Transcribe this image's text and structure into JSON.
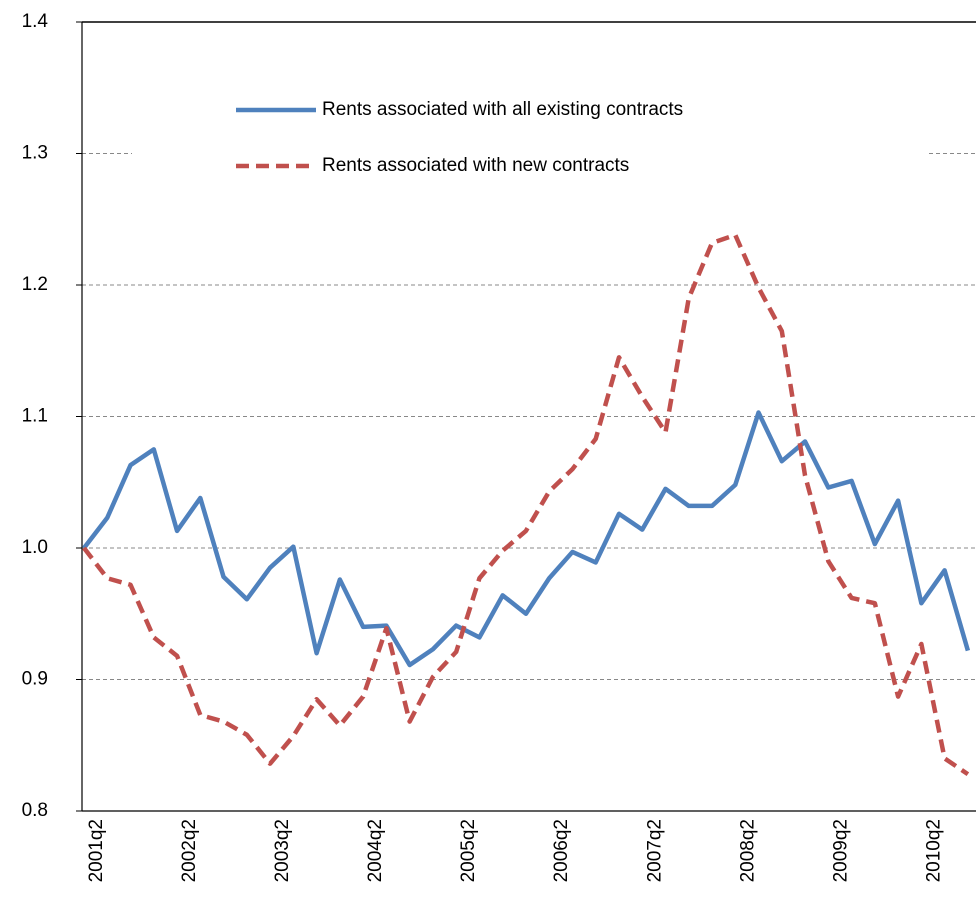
{
  "chart_data": {
    "type": "line",
    "categories": [
      "2001q2",
      null,
      null,
      null,
      "2002q2",
      null,
      null,
      null,
      "2003q2",
      null,
      null,
      null,
      "2004q2",
      null,
      null,
      null,
      "2005q2",
      null,
      null,
      null,
      "2006q2",
      null,
      null,
      null,
      "2007q2",
      null,
      null,
      null,
      "2008q2",
      null,
      null,
      null,
      "2009q2",
      null,
      null,
      null,
      "2010q2",
      null,
      null
    ],
    "series": [
      {
        "name": "Rents associated with all existing contracts",
        "color": "#4f81bd",
        "dash": false,
        "values": [
          1.0,
          1.023,
          1.063,
          1.075,
          1.013,
          1.038,
          0.978,
          0.961,
          0.985,
          1.001,
          0.92,
          0.976,
          0.94,
          0.941,
          0.911,
          0.923,
          0.941,
          0.932,
          0.964,
          0.95,
          0.977,
          0.997,
          0.989,
          1.026,
          1.014,
          1.045,
          1.032,
          1.032,
          1.048,
          1.103,
          1.066,
          1.081,
          1.046,
          1.051,
          1.003,
          1.036,
          0.958,
          0.983,
          0.922
        ]
      },
      {
        "name": "Rents associated with new contracts",
        "color": "#c0504d",
        "dash": true,
        "values": [
          1.0,
          0.977,
          0.972,
          0.932,
          0.918,
          0.873,
          0.868,
          0.858,
          0.836,
          0.857,
          0.885,
          0.865,
          0.887,
          0.939,
          0.868,
          0.902,
          0.921,
          0.977,
          0.998,
          1.013,
          1.043,
          1.06,
          1.083,
          1.145,
          1.115,
          1.088,
          1.19,
          1.232,
          1.238,
          1.198,
          1.165,
          1.055,
          0.99,
          0.962,
          0.958,
          0.887,
          0.927,
          0.84,
          0.828
        ]
      }
    ],
    "ylim": [
      0.8,
      1.4
    ],
    "yticks": [
      0.8,
      0.9,
      {
        "value": 1.0,
        "label": "1.0"
      },
      1.1,
      1.2,
      1.3,
      1.4
    ],
    "grid": true,
    "legend": "upper center"
  }
}
